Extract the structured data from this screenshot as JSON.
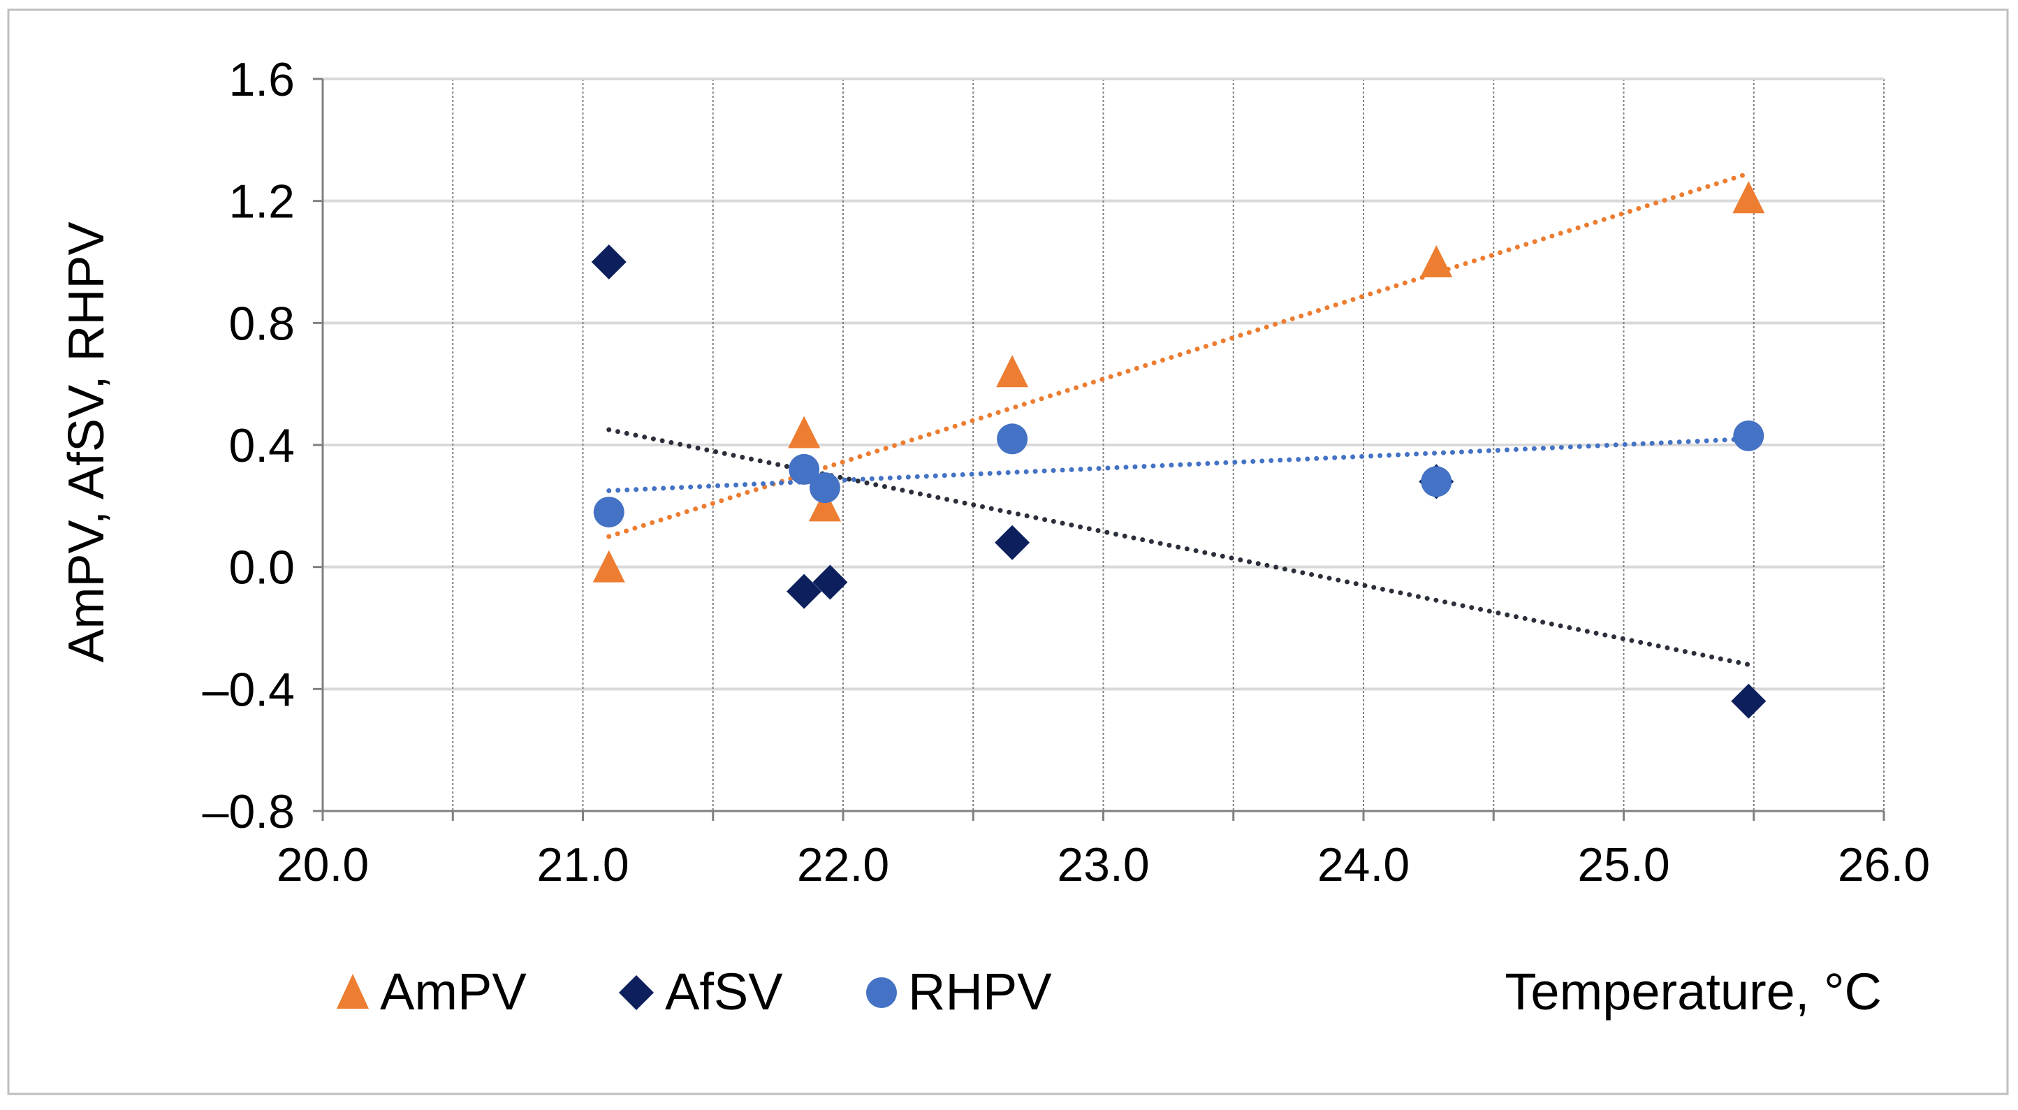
{
  "chart_data": {
    "type": "scatter",
    "title": "",
    "xlabel": "Temperature, °C",
    "ylabel": "AmPV, AfSV,  RHPV",
    "xlim": [
      20.0,
      26.0
    ],
    "ylim": [
      -0.8,
      1.6
    ],
    "x_ticks": [
      "20.0",
      "21.0",
      "22.0",
      "23.0",
      "24.0",
      "25.0",
      "26.0"
    ],
    "y_ticks": [
      "1.6",
      "1.2",
      "0.8",
      "0.4",
      "0.0",
      "–0.4",
      "–0.8"
    ],
    "grid": true,
    "legend_position": "bottom",
    "series": [
      {
        "name": "AmPV",
        "marker": "triangle",
        "color": "#ED7D31",
        "x": [
          21.1,
          21.85,
          21.93,
          22.65,
          24.28,
          25.48
        ],
        "y": [
          0.0,
          0.44,
          0.2,
          0.64,
          1.0,
          1.21
        ],
        "trendline": {
          "x": [
            21.1,
            25.48
          ],
          "y": [
            0.1,
            1.29
          ]
        }
      },
      {
        "name": "AfSV",
        "marker": "diamond",
        "color": "#0D1F5C",
        "x": [
          21.1,
          21.85,
          21.95,
          22.65,
          24.28,
          25.48
        ],
        "y": [
          1.0,
          -0.08,
          -0.05,
          0.08,
          0.28,
          -0.44
        ],
        "trendline": {
          "x": [
            21.1,
            25.48
          ],
          "y": [
            0.45,
            -0.32
          ]
        }
      },
      {
        "name": "RHPV",
        "marker": "circle",
        "color": "#4472C4",
        "x": [
          21.1,
          21.85,
          21.93,
          22.65,
          24.28,
          25.48
        ],
        "y": [
          0.18,
          0.32,
          0.26,
          0.42,
          0.28,
          0.43
        ],
        "trendline": {
          "x": [
            21.1,
            25.48
          ],
          "y": [
            0.25,
            0.42
          ]
        }
      }
    ],
    "trendline_color_afsv": "#2B2F3A"
  }
}
